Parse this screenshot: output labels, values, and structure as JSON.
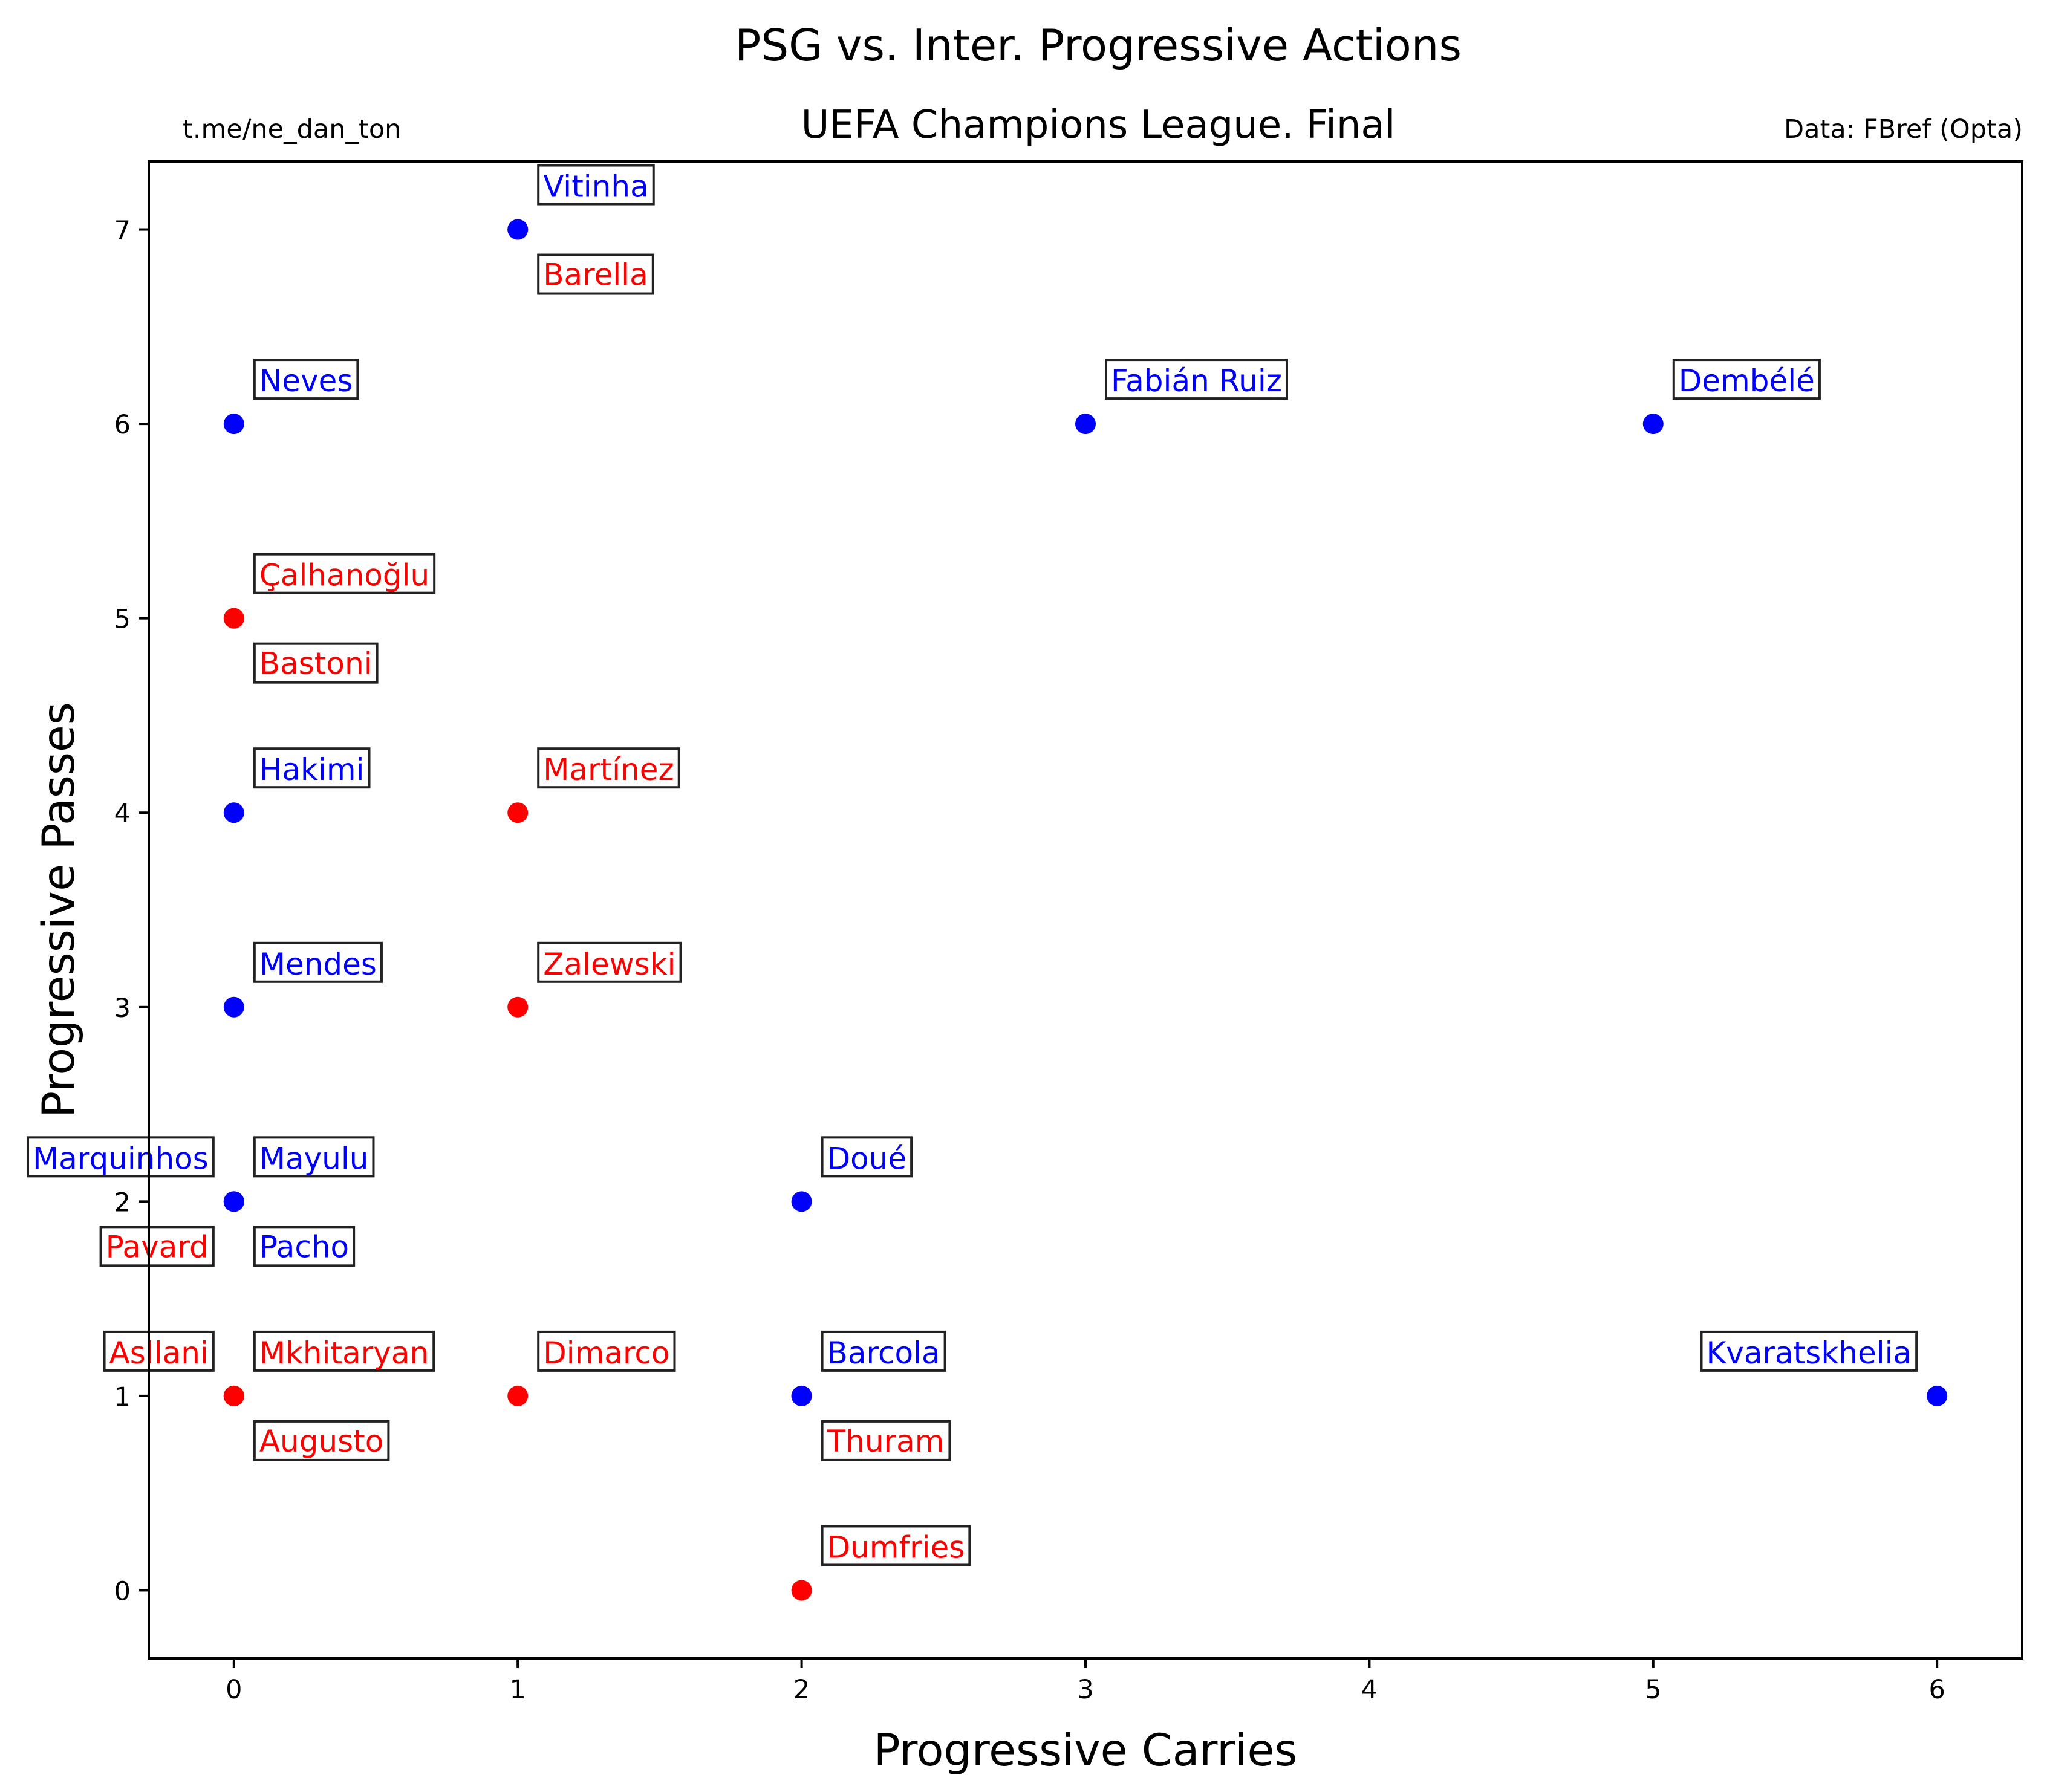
{
  "chart_data": {
    "type": "scatter",
    "title": "PSG vs. Inter. Progressive Actions",
    "subtitle": "UEFA Champions League. Final",
    "credit_left": "t.me/ne_dan_ton",
    "credit_right": "Data: FBref (Opta)",
    "xlabel": "Progressive Carries",
    "ylabel": "Progressive Passes",
    "xlim": [
      -0.3,
      6.3
    ],
    "ylim": [
      -0.35,
      7.35
    ],
    "xticks": [
      0,
      1,
      2,
      3,
      4,
      5,
      6
    ],
    "yticks": [
      0,
      1,
      2,
      3,
      4,
      5,
      6,
      7
    ],
    "grid": false,
    "legend": "none",
    "series": [
      {
        "color": "#0000ff",
        "points": [
          {
            "label": "Vitinha",
            "x": 1,
            "y": 7,
            "anchor": "above-right"
          },
          {
            "label": "Neves",
            "x": 0,
            "y": 6,
            "anchor": "above-right"
          },
          {
            "label": "Fabián Ruiz",
            "x": 3,
            "y": 6,
            "anchor": "above-right"
          },
          {
            "label": "Dembélé",
            "x": 5,
            "y": 6,
            "anchor": "above-right"
          },
          {
            "label": "Hakimi",
            "x": 0,
            "y": 4,
            "anchor": "above-right"
          },
          {
            "label": "Mendes",
            "x": 0,
            "y": 3,
            "anchor": "above-right"
          },
          {
            "label": "Mayulu",
            "x": 0,
            "y": 2,
            "anchor": "above-right"
          },
          {
            "label": "Marquinhos",
            "x": 0,
            "y": 2,
            "anchor": "above-left"
          },
          {
            "label": "Pacho",
            "x": 0,
            "y": 2,
            "anchor": "below-right"
          },
          {
            "label": "Doué",
            "x": 2,
            "y": 2,
            "anchor": "above-right"
          },
          {
            "label": "Barcola",
            "x": 2,
            "y": 1,
            "anchor": "above-right"
          },
          {
            "label": "Kvaratskhelia",
            "x": 6,
            "y": 1,
            "anchor": "above-left"
          }
        ]
      },
      {
        "color": "#ff0000",
        "points": [
          {
            "label": "Barella",
            "x": 1,
            "y": 7,
            "anchor": "below-right"
          },
          {
            "label": "Çalhanoğlu",
            "x": 0,
            "y": 5,
            "anchor": "above-right"
          },
          {
            "label": "Bastoni",
            "x": 0,
            "y": 5,
            "anchor": "below-right"
          },
          {
            "label": "Martínez",
            "x": 1,
            "y": 4,
            "anchor": "above-right"
          },
          {
            "label": "Zalewski",
            "x": 1,
            "y": 3,
            "anchor": "above-right"
          },
          {
            "label": "Pavard",
            "x": 0,
            "y": 2,
            "anchor": "below-left"
          },
          {
            "label": "Asllani",
            "x": 0,
            "y": 1,
            "anchor": "above-left"
          },
          {
            "label": "Mkhitaryan",
            "x": 0,
            "y": 1,
            "anchor": "above-right"
          },
          {
            "label": "Augusto",
            "x": 0,
            "y": 1,
            "anchor": "below-right"
          },
          {
            "label": "Dimarco",
            "x": 1,
            "y": 1,
            "anchor": "above-right"
          },
          {
            "label": "Thuram",
            "x": 2,
            "y": 1,
            "anchor": "below-right"
          },
          {
            "label": "Dumfries",
            "x": 2,
            "y": 0,
            "anchor": "above-right"
          }
        ]
      }
    ]
  }
}
